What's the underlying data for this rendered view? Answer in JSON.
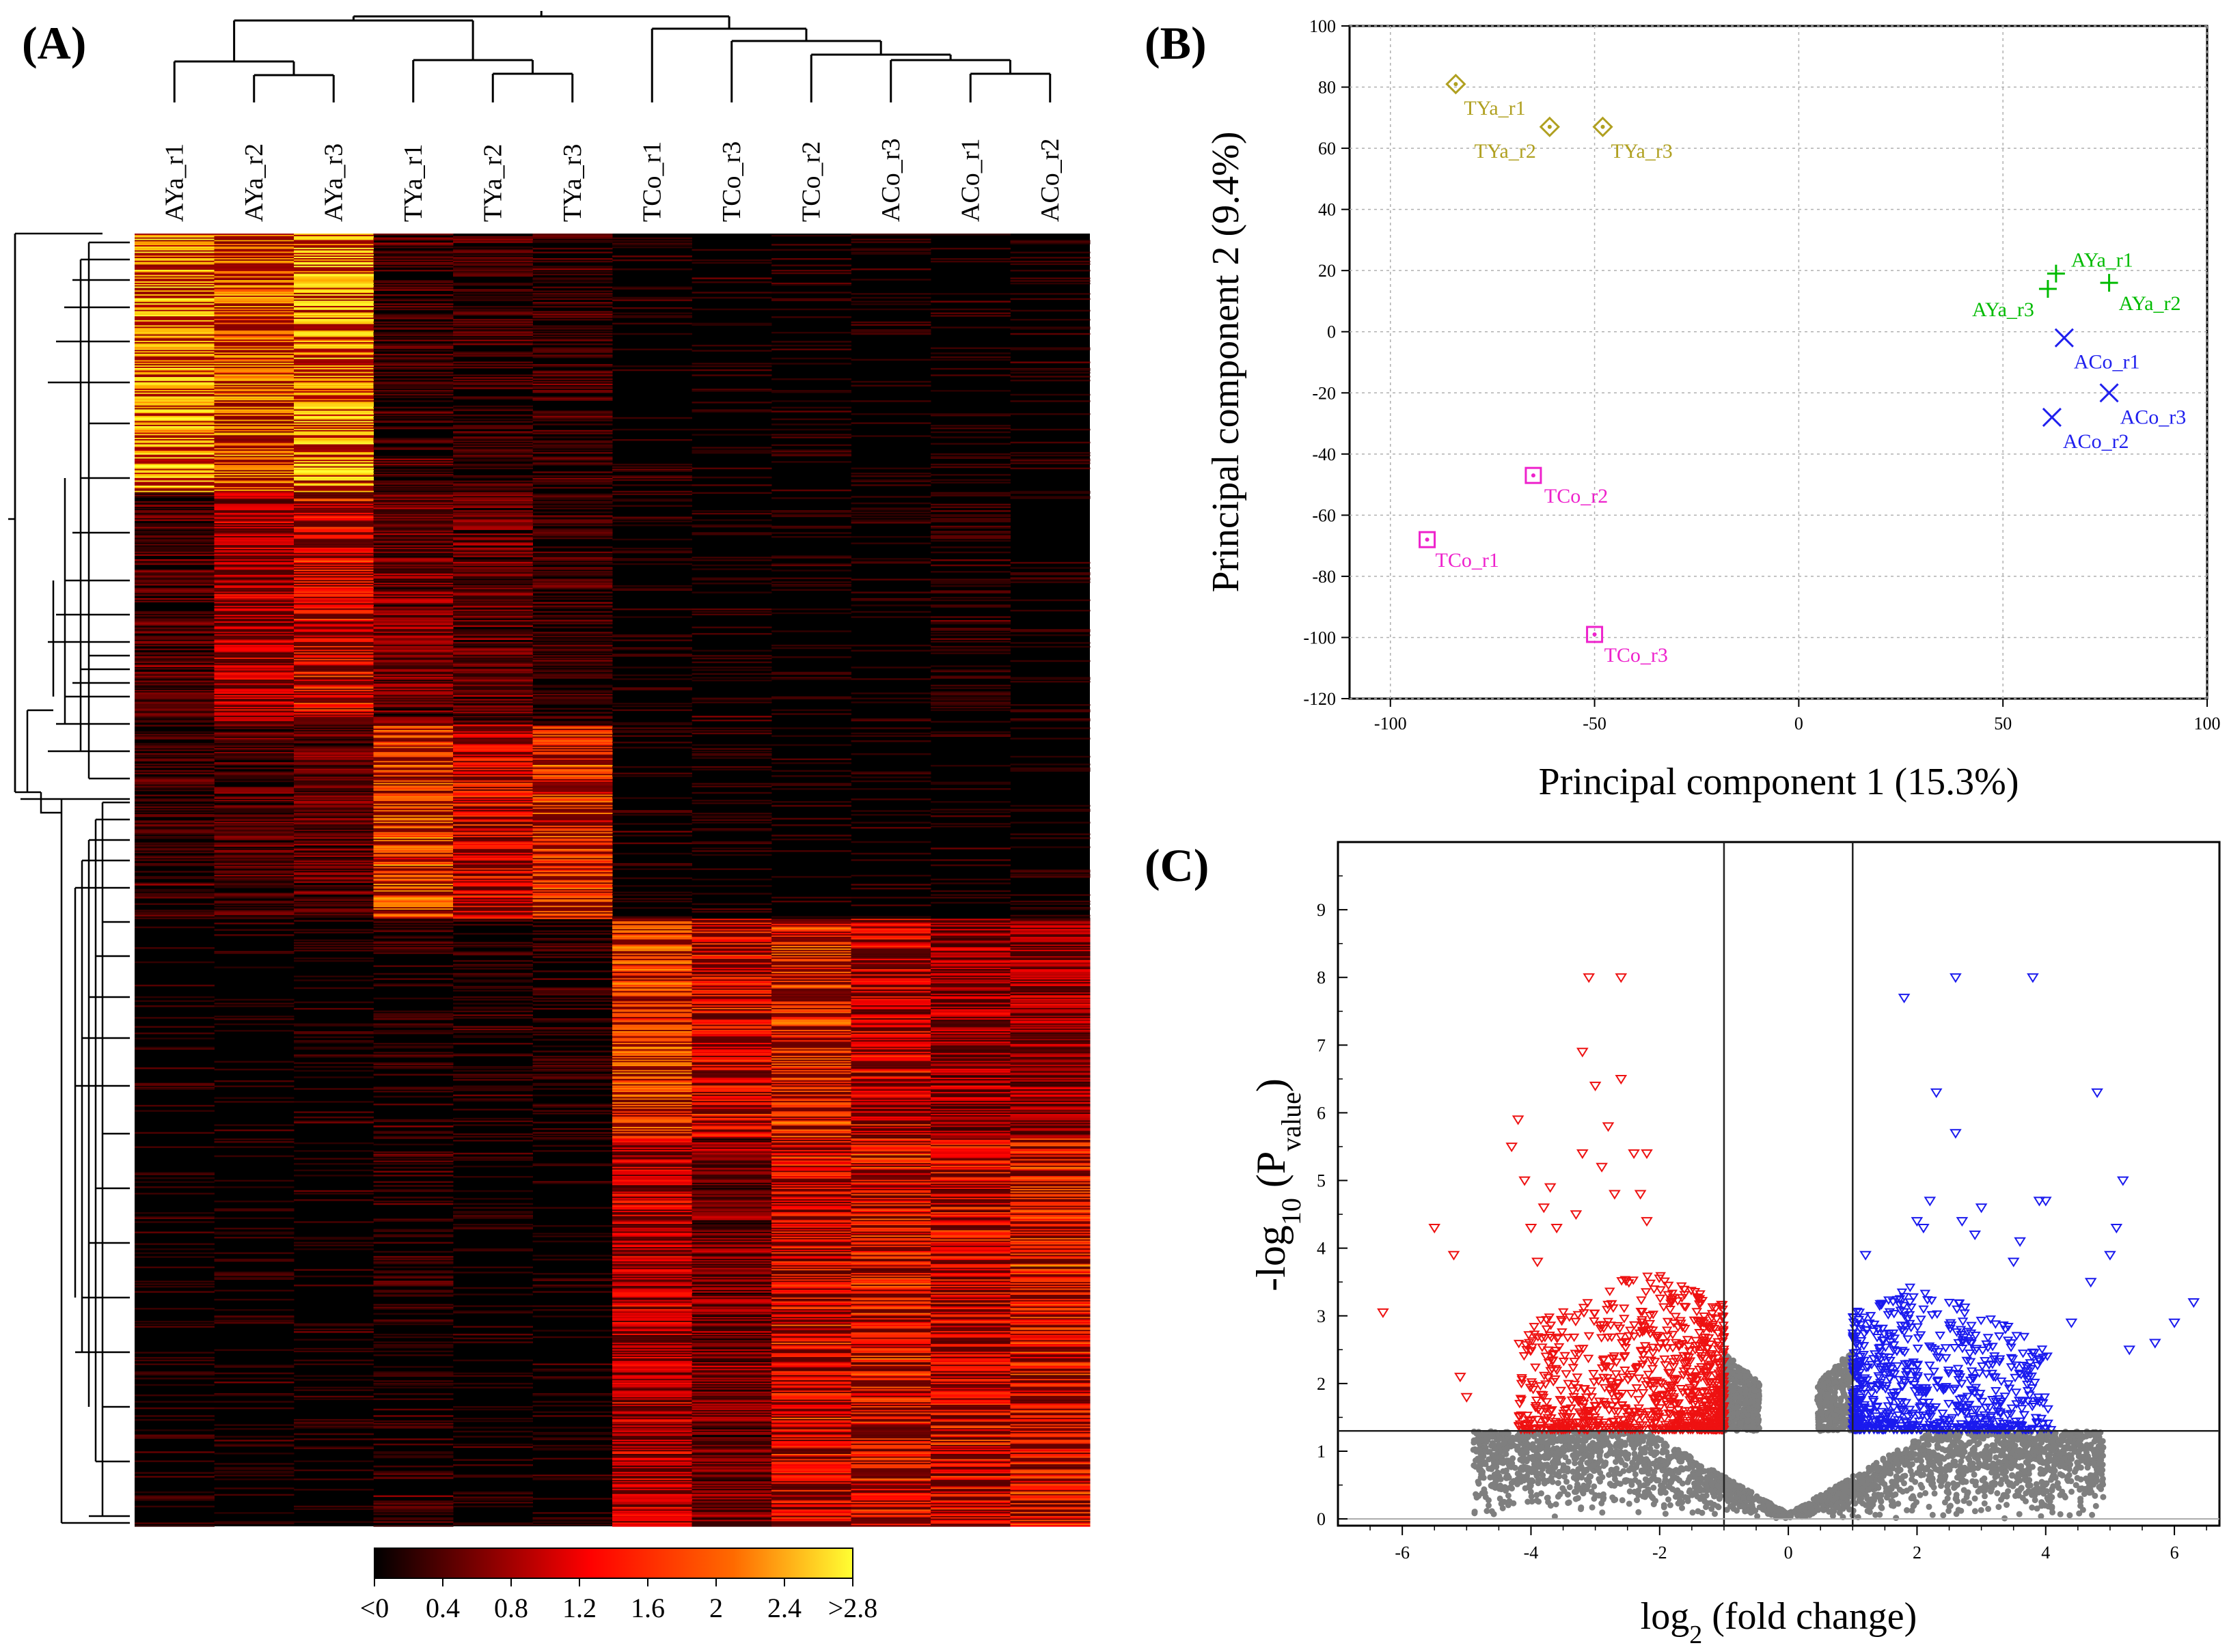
{
  "chart_data": [
    {
      "panel": "(A)",
      "type": "heatmap",
      "columns": [
        "AYa_r1",
        "AYa_r2",
        "AYa_r3",
        "TYa_r1",
        "TYa_r2",
        "TYa_r3",
        "TCo_r1",
        "TCo_r3",
        "TCo_r2",
        "ACo_r3",
        "ACo_r1",
        "ACo_r2"
      ],
      "color_scale": {
        "labels": [
          "<0",
          "0.4",
          "0.8",
          "1.2",
          "1.6",
          "2",
          "2.4",
          ">2.8"
        ],
        "values": [
          0,
          0.4,
          0.8,
          1.2,
          1.6,
          2,
          2.4,
          2.8
        ],
        "colors": [
          "#000000",
          "#ff0000",
          "#ffff33"
        ]
      },
      "blocks": [
        {
          "rows": 200,
          "profile": [
            0.9,
            0.8,
            0.9,
            0.15,
            0.15,
            0.15,
            0.05,
            0.05,
            0.05,
            0.05,
            0.05,
            0.05
          ]
        },
        {
          "rows": 180,
          "profile": [
            0.2,
            0.45,
            0.55,
            0.3,
            0.25,
            0.15,
            0.05,
            0.05,
            0.05,
            0.05,
            0.1,
            0.05
          ]
        },
        {
          "rows": 150,
          "profile": [
            0.15,
            0.2,
            0.25,
            0.7,
            0.55,
            0.65,
            0.05,
            0.05,
            0.05,
            0.05,
            0.05,
            0.05
          ]
        },
        {
          "rows": 170,
          "profile": [
            0.05,
            0.05,
            0.05,
            0.1,
            0.1,
            0.1,
            0.7,
            0.55,
            0.65,
            0.5,
            0.4,
            0.4
          ]
        },
        {
          "rows": 300,
          "profile": [
            0.05,
            0.05,
            0.05,
            0.1,
            0.05,
            0.05,
            0.45,
            0.3,
            0.55,
            0.6,
            0.55,
            0.6
          ]
        }
      ]
    },
    {
      "panel": "(B)",
      "type": "scatter",
      "xlabel": "Principal component 1 (15.3%)",
      "ylabel": "Principal component 2 (9.4%)",
      "xlim": [
        -110,
        100
      ],
      "ylim": [
        -120,
        100
      ],
      "xticks": [
        "-100",
        "-50",
        "0",
        "50",
        "100"
      ],
      "yticks": [
        "100",
        "80",
        "60",
        "40",
        "20",
        "0",
        "-20",
        "-40",
        "-60",
        "-80",
        "-100",
        "-120"
      ],
      "series": [
        {
          "name": "TYa",
          "color": "#b0a020",
          "marker": "diamond",
          "points": [
            {
              "label": "TYa_r1",
              "x": -84,
              "y": 81
            },
            {
              "label": "TYa_r2",
              "x": -61,
              "y": 67
            },
            {
              "label": "TYa_r3",
              "x": -48,
              "y": 67
            }
          ]
        },
        {
          "name": "AYa",
          "color": "#00bb00",
          "marker": "plus",
          "points": [
            {
              "label": "AYa_r1",
              "x": 63,
              "y": 19
            },
            {
              "label": "AYa_r2",
              "x": 76,
              "y": 16
            },
            {
              "label": "AYa_r3",
              "x": 61,
              "y": 14
            }
          ]
        },
        {
          "name": "ACo",
          "color": "#2020ee",
          "marker": "x",
          "points": [
            {
              "label": "ACo_r1",
              "x": 65,
              "y": -2
            },
            {
              "label": "ACo_r3",
              "x": 76,
              "y": -20
            },
            {
              "label": "ACo_r2",
              "x": 62,
              "y": -28
            }
          ]
        },
        {
          "name": "TCo",
          "color": "#ee22cc",
          "marker": "square",
          "points": [
            {
              "label": "TCo_r2",
              "x": -65,
              "y": -47
            },
            {
              "label": "TCo_r1",
              "x": -91,
              "y": -68
            },
            {
              "label": "TCo_r3",
              "x": -50,
              "y": -99
            }
          ]
        }
      ]
    },
    {
      "panel": "(C)",
      "type": "scatter",
      "xlabel": "log",
      "xlabel_sub": "2",
      "xlabel_rest": " (fold change)",
      "ylabel": "-log",
      "ylabel_sub": "10",
      "ylabel_p": " (P",
      "ylabel_psub": "value",
      "ylabel_end": ")",
      "xlim": [
        -7,
        6.7
      ],
      "ylim": [
        -0.1,
        10
      ],
      "xticks": [
        "-6",
        "-4",
        "-2",
        "0",
        "2",
        "4",
        "6"
      ],
      "yticks": [
        "0",
        "1",
        "2",
        "3",
        "4",
        "5",
        "6",
        "7",
        "8",
        "9"
      ],
      "fold_change_threshold": [
        -1,
        1
      ],
      "pvalue_threshold": 1.3,
      "colors": {
        "down": "#ee1111",
        "up": "#1a1aee",
        "ns": "#7f7f7f"
      },
      "down_outliers": [
        [
          -6.3,
          3.05
        ],
        [
          -5.5,
          4.3
        ],
        [
          -5.2,
          3.9
        ],
        [
          -5.1,
          2.1
        ],
        [
          -5,
          1.8
        ],
        [
          -4.2,
          5.9
        ],
        [
          -4.3,
          5.5
        ],
        [
          -4.1,
          5.0
        ],
        [
          -3.8,
          4.6
        ],
        [
          -3.7,
          4.9
        ],
        [
          -3.2,
          6.9
        ],
        [
          -3.1,
          8.0
        ],
        [
          -3.0,
          6.4
        ],
        [
          -2.6,
          8.0
        ],
        [
          -2.6,
          6.5
        ],
        [
          -2.8,
          5.8
        ],
        [
          -2.4,
          5.4
        ],
        [
          -2.2,
          5.4
        ],
        [
          -2.2,
          4.4
        ],
        [
          -2.9,
          5.2
        ],
        [
          -3.2,
          5.4
        ],
        [
          -3.6,
          4.3
        ],
        [
          -4.0,
          4.3
        ],
        [
          -3.9,
          3.8
        ],
        [
          -3.3,
          4.5
        ],
        [
          -2.7,
          4.8
        ],
        [
          -2.3,
          4.8
        ]
      ],
      "up_outliers": [
        [
          6.3,
          3.2
        ],
        [
          6.0,
          2.9
        ],
        [
          5.7,
          2.6
        ],
        [
          5.3,
          2.5
        ],
        [
          5.2,
          5.0
        ],
        [
          5.1,
          4.3
        ],
        [
          5.0,
          3.9
        ],
        [
          4.8,
          6.3
        ],
        [
          4.0,
          4.7
        ],
        [
          3.9,
          4.7
        ],
        [
          3.8,
          8.0
        ],
        [
          3.6,
          4.1
        ],
        [
          3.0,
          4.6
        ],
        [
          2.9,
          4.2
        ],
        [
          2.7,
          4.4
        ],
        [
          2.6,
          8.0
        ],
        [
          2.6,
          5.7
        ],
        [
          2.3,
          6.3
        ],
        [
          2.2,
          4.7
        ],
        [
          2.1,
          4.3
        ],
        [
          1.8,
          7.7
        ],
        [
          2.0,
          4.4
        ],
        [
          1.2,
          3.9
        ],
        [
          4.4,
          2.9
        ],
        [
          4.7,
          3.5
        ],
        [
          3.5,
          3.8
        ]
      ]
    }
  ]
}
